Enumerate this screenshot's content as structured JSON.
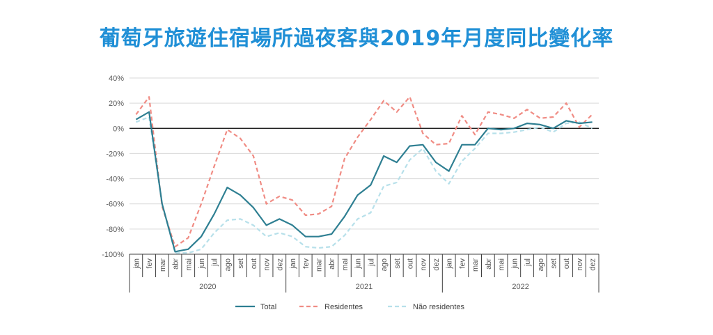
{
  "chart_data": {
    "type": "line",
    "title": "葡萄牙旅遊住宿場所過夜客與2019年月度同比變化率",
    "xlabel": "",
    "ylabel": "",
    "ylim": [
      -100,
      40
    ],
    "yticks": [
      "40%",
      "20%",
      "0%",
      "-20%",
      "-40%",
      "-60%",
      "-80%",
      "-100%"
    ],
    "grid": true,
    "legend_position": "bottom",
    "years": [
      {
        "label": "2020",
        "months": [
          "jan",
          "fev",
          "mar",
          "abr",
          "mai",
          "jun",
          "jul",
          "ago",
          "set",
          "out",
          "nov",
          "dez"
        ]
      },
      {
        "label": "2021",
        "months": [
          "jan",
          "fev",
          "mar",
          "abr",
          "mai",
          "jun",
          "jul",
          "ago",
          "set",
          "out",
          "nov",
          "dez"
        ]
      },
      {
        "label": "2022",
        "months": [
          "jan",
          "fev",
          "mar",
          "abr",
          "mai",
          "jun",
          "jul",
          "ago",
          "set",
          "out",
          "nov",
          "dez"
        ]
      }
    ],
    "series": [
      {
        "name": "Total",
        "color": "#2e7f92",
        "dash": "none",
        "values": [
          7,
          13,
          -60,
          -98,
          -96,
          -86,
          -68,
          -47,
          -53,
          -63,
          -77,
          -72,
          -77,
          -86,
          -86,
          -84,
          -70,
          -53,
          -45,
          -22,
          -27,
          -14,
          -13,
          -27,
          -34,
          -13,
          -13,
          0,
          -1,
          0,
          4,
          3,
          0,
          6,
          4,
          5
        ]
      },
      {
        "name": "Residentes",
        "color": "#f08c84",
        "dash": "6,4",
        "values": [
          11,
          25,
          -62,
          -94,
          -87,
          -60,
          -30,
          -1,
          -8,
          -22,
          -60,
          -54,
          -57,
          -69,
          -68,
          -62,
          -24,
          -7,
          7,
          22,
          13,
          25,
          -4,
          -13,
          -12,
          10,
          -5,
          13,
          11,
          8,
          15,
          8,
          9,
          20,
          1,
          11
        ]
      },
      {
        "name": "Não residentes",
        "color": "#b7e0ea",
        "dash": "6,4",
        "values": [
          5,
          9,
          -60,
          -99,
          -99,
          -96,
          -83,
          -73,
          -72,
          -77,
          -86,
          -83,
          -86,
          -94,
          -95,
          -94,
          -85,
          -72,
          -67,
          -46,
          -43,
          -25,
          -16,
          -34,
          -44,
          -26,
          -16,
          -4,
          -4,
          -3,
          -1,
          1,
          -3,
          4,
          5,
          0
        ]
      }
    ]
  }
}
